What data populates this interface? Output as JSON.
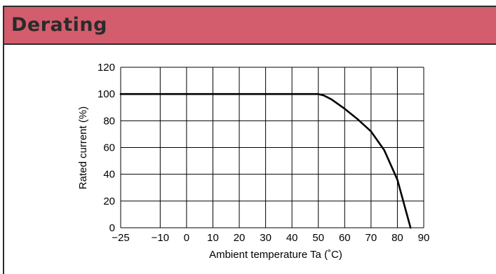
{
  "header": {
    "title": "Derating"
  },
  "chart_data": {
    "type": "line",
    "title": "",
    "xlabel": "Ambient temperature Ta (˚C)",
    "ylabel": "Rated current (%)",
    "xlim": [
      -25,
      90
    ],
    "ylim": [
      0,
      120
    ],
    "grid": true,
    "x_ticks": [
      -25,
      -10,
      0,
      10,
      20,
      30,
      40,
      50,
      60,
      70,
      80,
      90
    ],
    "x_tick_labels": [
      "−25",
      "−10",
      "0",
      "10",
      "20",
      "30",
      "40",
      "50",
      "60",
      "70",
      "80",
      "90"
    ],
    "y_ticks": [
      0,
      20,
      40,
      60,
      80,
      100,
      120
    ],
    "y_tick_labels": [
      "0",
      "20",
      "40",
      "60",
      "80",
      "100",
      "120"
    ],
    "series": [
      {
        "x": [
          -25,
          50,
          52,
          55,
          60,
          65,
          70,
          75,
          80,
          85
        ],
        "y": [
          100,
          100,
          99,
          96,
          89,
          81,
          72,
          58,
          36,
          0
        ]
      }
    ]
  }
}
